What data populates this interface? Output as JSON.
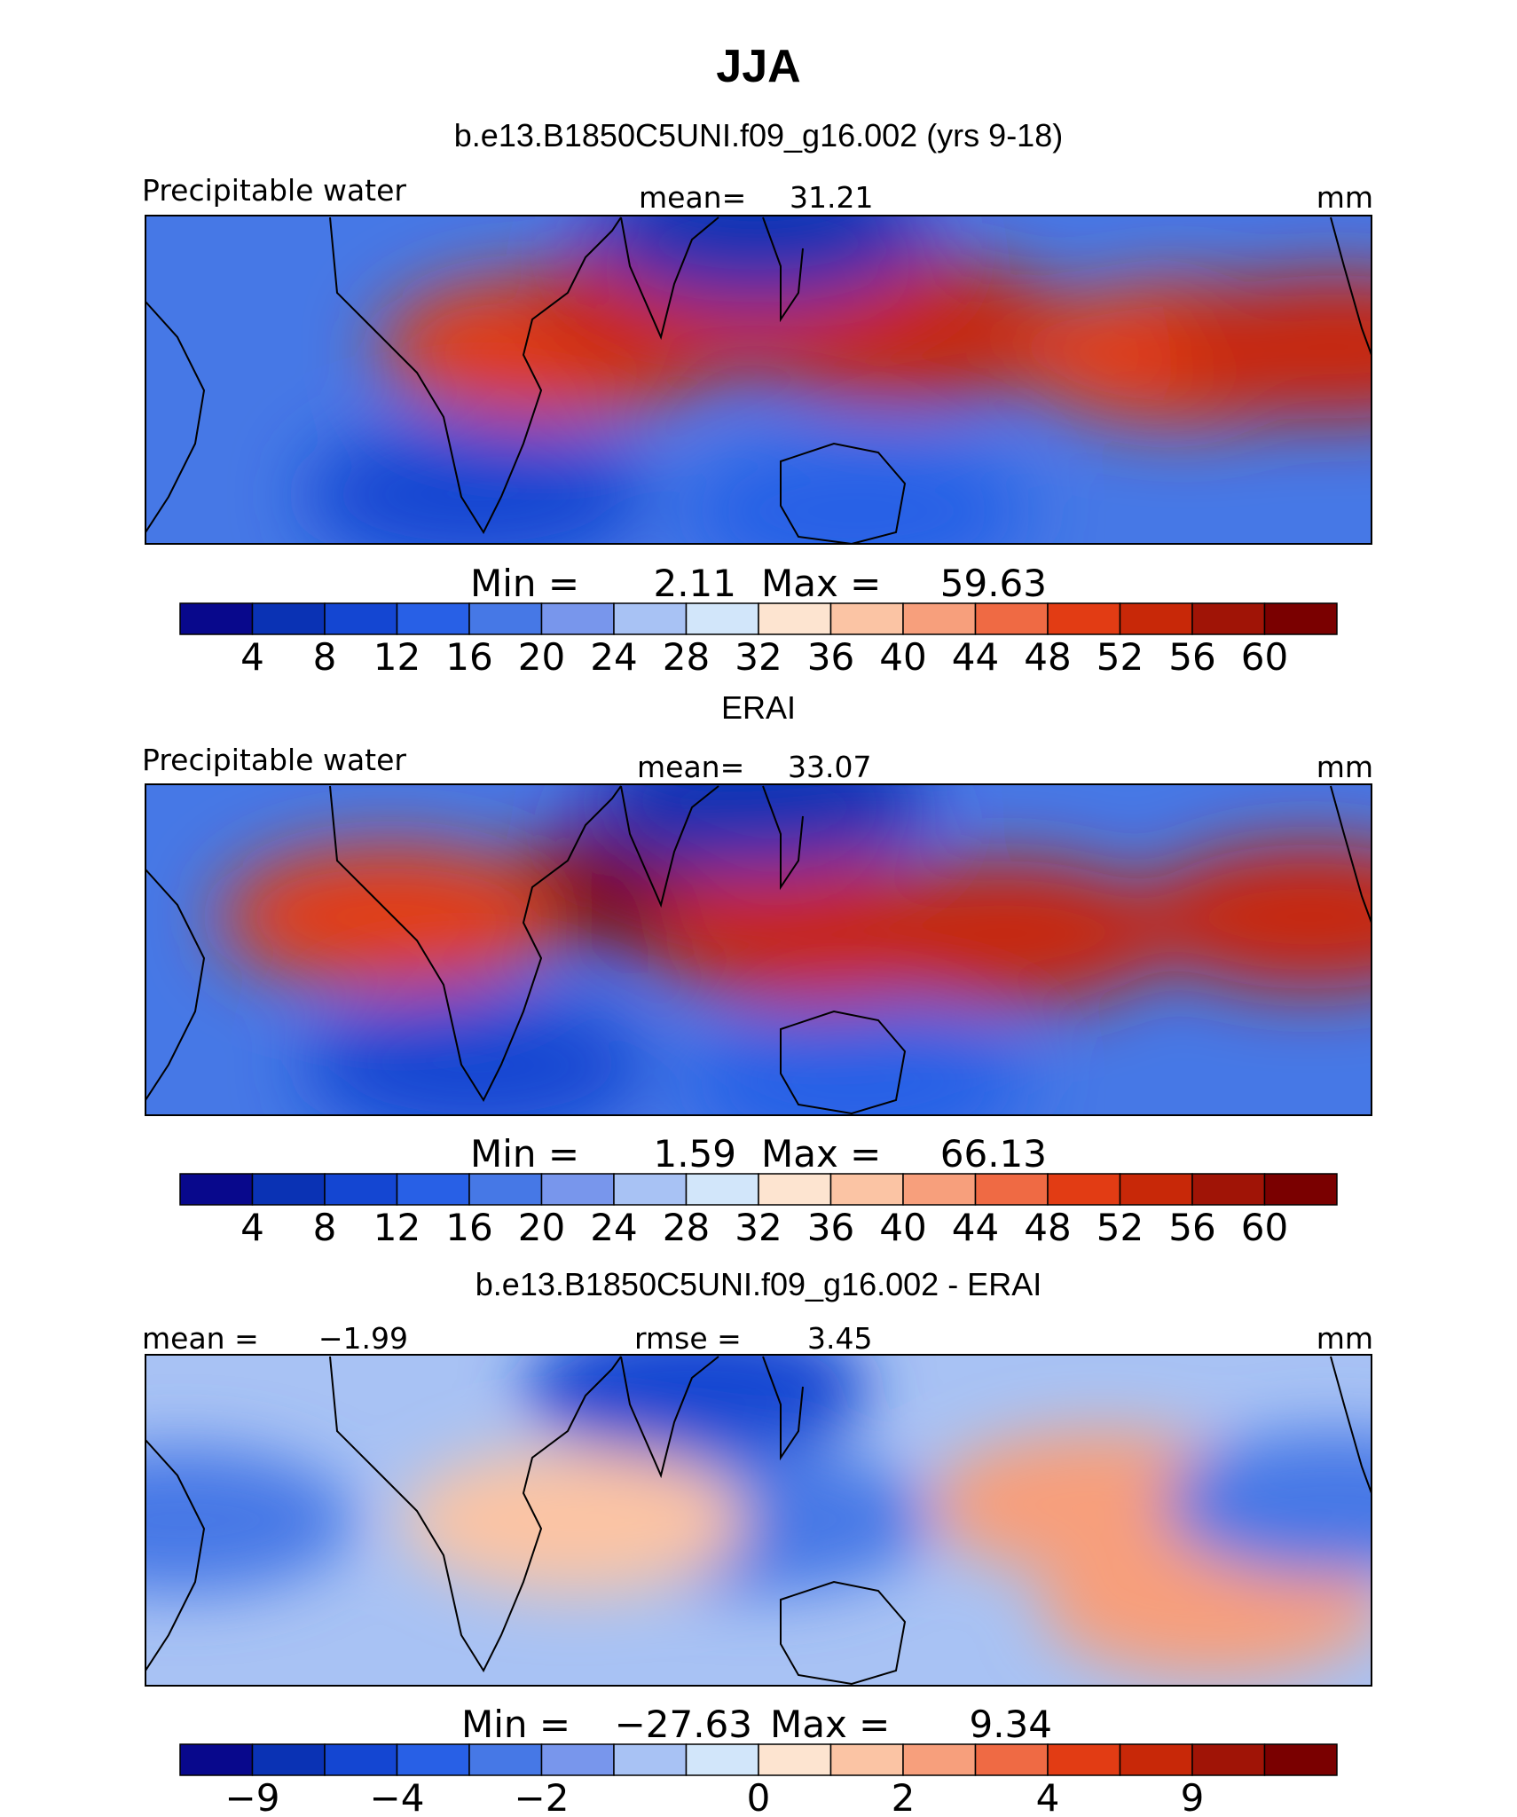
{
  "figure_title": "JJA",
  "chart_data": [
    {
      "type": "heatmap",
      "title": "b.e13.B1850C5UNI.f09_g16.002 (yrs 9-18)",
      "variable": "Precipitable water",
      "stat_label": "mean=",
      "stat_value": "31.21",
      "units": "mm",
      "min_label": "Min =",
      "min_value": "2.11",
      "max_label": "Max =",
      "max_value": "59.63",
      "colorbar_ticks": [
        "4",
        "8",
        "12",
        "16",
        "20",
        "24",
        "28",
        "32",
        "36",
        "40",
        "44",
        "48",
        "52",
        "56",
        "60"
      ],
      "features": [
        {
          "x": 0.33,
          "y": 0.4,
          "v": 50
        },
        {
          "x": 0.62,
          "y": 0.35,
          "v": 55
        },
        {
          "x": 0.45,
          "y": 0.28,
          "v": 52
        },
        {
          "x": 0.85,
          "y": 0.42,
          "v": 50
        },
        {
          "x": 0.97,
          "y": 0.4,
          "v": 54
        },
        {
          "x": 0.5,
          "y": 0.05,
          "v": 4
        },
        {
          "x": 0.27,
          "y": 0.85,
          "v": 8
        },
        {
          "x": 0.58,
          "y": 0.9,
          "v": 12
        }
      ]
    },
    {
      "type": "heatmap",
      "title": "ERAI",
      "variable": "Precipitable water",
      "stat_label": "mean=",
      "stat_value": "33.07",
      "units": "mm",
      "min_label": "Min =",
      "min_value": "1.59",
      "max_label": "Max =",
      "max_value": "66.13",
      "colorbar_ticks": [
        "4",
        "8",
        "12",
        "16",
        "20",
        "24",
        "28",
        "32",
        "36",
        "40",
        "44",
        "48",
        "52",
        "56",
        "60"
      ],
      "features": [
        {
          "x": 0.44,
          "y": 0.3,
          "v": 60
        },
        {
          "x": 0.55,
          "y": 0.45,
          "v": 54
        },
        {
          "x": 0.7,
          "y": 0.45,
          "v": 52
        },
        {
          "x": 0.95,
          "y": 0.4,
          "v": 52
        },
        {
          "x": 0.2,
          "y": 0.4,
          "v": 48
        },
        {
          "x": 0.5,
          "y": 0.05,
          "v": 4
        },
        {
          "x": 0.27,
          "y": 0.85,
          "v": 8
        },
        {
          "x": 0.58,
          "y": 0.9,
          "v": 12
        }
      ]
    },
    {
      "type": "heatmap",
      "title": "b.e13.B1850C5UNI.f09_g16.002 - ERAI",
      "variable": "mean =",
      "stat_label": "rmse =",
      "stat_value": "3.45",
      "left_value": "−1.99",
      "units": "mm",
      "min_label": "Min =",
      "min_value": "−27.63",
      "max_label": "Max =",
      "max_value": "9.34",
      "colorbar_ticks": [
        "−9",
        "−4",
        "−2",
        "0",
        "2",
        "4",
        "9"
      ],
      "features": [
        {
          "x": 0.45,
          "y": 0.1,
          "v": -9
        },
        {
          "x": 0.5,
          "y": 0.5,
          "v": -6
        },
        {
          "x": 0.78,
          "y": 0.45,
          "v": 4
        },
        {
          "x": 0.87,
          "y": 0.75,
          "v": 4
        },
        {
          "x": 0.35,
          "y": 0.5,
          "v": 2
        },
        {
          "x": 0.03,
          "y": 0.5,
          "v": -5
        },
        {
          "x": 0.97,
          "y": 0.45,
          "v": -5
        }
      ]
    }
  ],
  "colormap": [
    "#08088c",
    "#0a32b4",
    "#1446d2",
    "#2860e6",
    "#4678e6",
    "#7896ec",
    "#a8c2f4",
    "#d2e6fa",
    "#fde4d0",
    "#fbc4a4",
    "#f79f7c",
    "#ef6a44",
    "#e23c14",
    "#c82808",
    "#a01406",
    "#7a0000"
  ]
}
